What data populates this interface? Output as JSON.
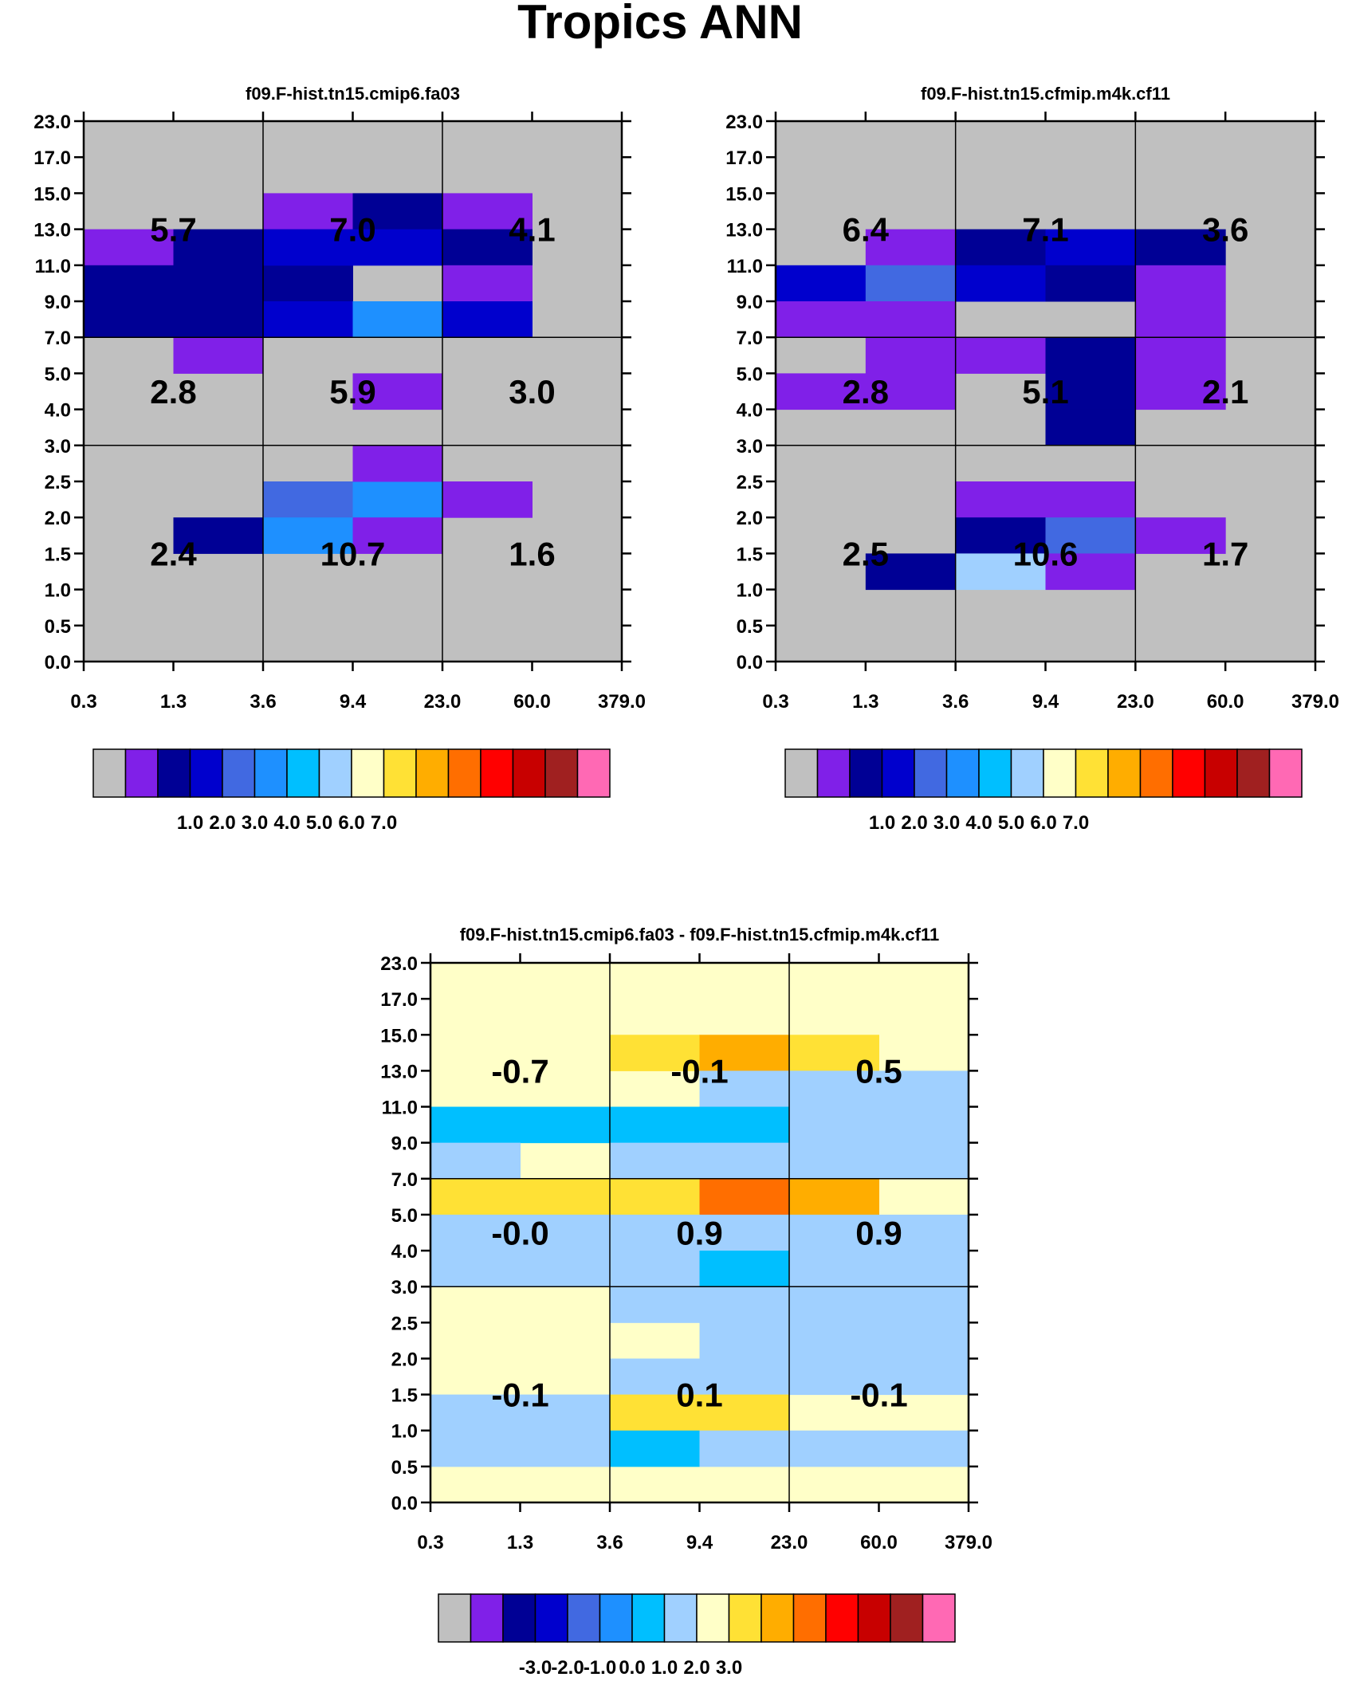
{
  "figure_title": "Tropics ANN",
  "palette": [
    "#c0c0c0",
    "#8020e8",
    "#000095",
    "#0000cd",
    "#4169e1",
    "#1e90ff",
    "#00bfff",
    "#a0d0ff",
    "#ffffc8",
    "#ffe135",
    "#ffad00",
    "#ff6e00",
    "#ff0000",
    "#c80000",
    "#a02020",
    "#ff69b4"
  ],
  "chart_data": [
    {
      "type": "heatmap",
      "title": "f09.F-hist.tn15.cmip6.fa03",
      "x_tick_labels": [
        "0.3",
        "1.3",
        "3.6",
        "9.4",
        "23.0",
        "60.0",
        "379.0"
      ],
      "y_tick_labels": [
        "0.0",
        "0.5",
        "1.0",
        "1.5",
        "2.0",
        "2.5",
        "3.0",
        "4.0",
        "5.0",
        "7.0",
        "9.0",
        "11.0",
        "13.0",
        "15.0",
        "17.0",
        "23.0"
      ],
      "note": "cells: [x_bin_index, y_bin_index, palette_color_index] for non-background bins",
      "cells": [
        [
          0,
          11,
          1
        ],
        [
          1,
          11,
          2
        ],
        [
          1,
          10,
          2
        ],
        [
          0,
          10,
          2
        ],
        [
          2,
          10,
          2
        ],
        [
          2,
          12,
          1
        ],
        [
          3,
          12,
          2
        ],
        [
          2,
          11,
          3
        ],
        [
          3,
          11,
          3
        ],
        [
          4,
          12,
          1
        ],
        [
          4,
          11,
          2
        ],
        [
          4,
          10,
          1
        ],
        [
          1,
          8,
          1
        ],
        [
          0,
          9,
          2
        ],
        [
          1,
          9,
          2
        ],
        [
          2,
          9,
          3
        ],
        [
          3,
          9,
          5
        ],
        [
          4,
          9,
          3
        ],
        [
          3,
          7,
          1
        ],
        [
          2,
          4,
          4
        ],
        [
          3,
          4,
          5
        ],
        [
          4,
          4,
          1
        ],
        [
          3,
          5,
          1
        ],
        [
          1,
          3,
          2
        ],
        [
          2,
          3,
          5
        ],
        [
          3,
          3,
          1
        ]
      ],
      "region_values": [
        {
          "row": "high",
          "col": "low",
          "value": "5.7"
        },
        {
          "row": "high",
          "col": "mid",
          "value": "7.0"
        },
        {
          "row": "high",
          "col": "high",
          "value": "4.1"
        },
        {
          "row": "mid",
          "col": "low",
          "value": "2.8"
        },
        {
          "row": "mid",
          "col": "mid",
          "value": "5.9"
        },
        {
          "row": "mid",
          "col": "high",
          "value": "3.0"
        },
        {
          "row": "low",
          "col": "low",
          "value": "2.4"
        },
        {
          "row": "low",
          "col": "mid",
          "value": "10.7"
        },
        {
          "row": "low",
          "col": "high",
          "value": "1.6"
        }
      ],
      "colorbar_labels": [
        "1.0",
        "2.0",
        "3.0",
        "4.0",
        "5.0",
        "6.0",
        "7.0"
      ]
    },
    {
      "type": "heatmap",
      "title": "f09.F-hist.tn15.cfmip.m4k.cf11",
      "x_tick_labels": [
        "0.3",
        "1.3",
        "3.6",
        "9.4",
        "23.0",
        "60.0",
        "379.0"
      ],
      "y_tick_labels": [
        "0.0",
        "0.5",
        "1.0",
        "1.5",
        "2.0",
        "2.5",
        "3.0",
        "4.0",
        "5.0",
        "7.0",
        "9.0",
        "11.0",
        "13.0",
        "15.0",
        "17.0",
        "23.0"
      ],
      "note": "cells: [x_bin_index, y_bin_index, palette_color_index] for non-background bins",
      "cells": [
        [
          1,
          11,
          1
        ],
        [
          2,
          11,
          2
        ],
        [
          3,
          11,
          3
        ],
        [
          4,
          11,
          2
        ],
        [
          0,
          10,
          3
        ],
        [
          1,
          10,
          4
        ],
        [
          2,
          10,
          3
        ],
        [
          3,
          10,
          2
        ],
        [
          4,
          10,
          1
        ],
        [
          0,
          9,
          1
        ],
        [
          1,
          9,
          1
        ],
        [
          4,
          9,
          1
        ],
        [
          1,
          8,
          1
        ],
        [
          2,
          8,
          1
        ],
        [
          3,
          8,
          2
        ],
        [
          4,
          8,
          1
        ],
        [
          0,
          7,
          1
        ],
        [
          1,
          7,
          1
        ],
        [
          3,
          7,
          2
        ],
        [
          4,
          7,
          1
        ],
        [
          3,
          6,
          2
        ],
        [
          2,
          4,
          1
        ],
        [
          3,
          4,
          1
        ],
        [
          2,
          3,
          2
        ],
        [
          3,
          3,
          4
        ],
        [
          4,
          3,
          1
        ],
        [
          1,
          2,
          2
        ],
        [
          2,
          2,
          7
        ],
        [
          3,
          2,
          1
        ]
      ],
      "region_values": [
        {
          "row": "high",
          "col": "low",
          "value": "6.4"
        },
        {
          "row": "high",
          "col": "mid",
          "value": "7.1"
        },
        {
          "row": "high",
          "col": "high",
          "value": "3.6"
        },
        {
          "row": "mid",
          "col": "low",
          "value": "2.8"
        },
        {
          "row": "mid",
          "col": "mid",
          "value": "5.1"
        },
        {
          "row": "mid",
          "col": "high",
          "value": "2.1"
        },
        {
          "row": "low",
          "col": "low",
          "value": "2.5"
        },
        {
          "row": "low",
          "col": "mid",
          "value": "10.6"
        },
        {
          "row": "low",
          "col": "high",
          "value": "1.7"
        }
      ],
      "colorbar_labels": [
        "1.0",
        "2.0",
        "3.0",
        "4.0",
        "5.0",
        "6.0",
        "7.0"
      ]
    },
    {
      "type": "heatmap",
      "title": "f09.F-hist.tn15.cmip6.fa03 - f09.F-hist.tn15.cfmip.m4k.cf11",
      "x_tick_labels": [
        "0.3",
        "1.3",
        "3.6",
        "9.4",
        "23.0",
        "60.0",
        "379.0"
      ],
      "y_tick_labels": [
        "0.0",
        "0.5",
        "1.0",
        "1.5",
        "2.0",
        "2.5",
        "3.0",
        "4.0",
        "5.0",
        "7.0",
        "9.0",
        "11.0",
        "13.0",
        "15.0",
        "17.0",
        "23.0"
      ],
      "note": "cells: [x_bin_index, y_bin_index, palette_color_index]; background is palette index 8",
      "cells": [
        [
          2,
          12,
          9
        ],
        [
          3,
          12,
          10
        ],
        [
          4,
          12,
          9
        ],
        [
          3,
          11,
          7
        ],
        [
          4,
          11,
          7
        ],
        [
          5,
          11,
          7
        ],
        [
          0,
          10,
          6
        ],
        [
          1,
          10,
          6
        ],
        [
          2,
          10,
          6
        ],
        [
          3,
          10,
          6
        ],
        [
          4,
          10,
          7
        ],
        [
          5,
          10,
          7
        ],
        [
          0,
          9,
          7
        ],
        [
          2,
          9,
          7
        ],
        [
          3,
          9,
          7
        ],
        [
          4,
          9,
          7
        ],
        [
          5,
          9,
          7
        ],
        [
          0,
          8,
          9
        ],
        [
          1,
          8,
          9
        ],
        [
          2,
          8,
          9
        ],
        [
          3,
          8,
          11
        ],
        [
          4,
          8,
          10
        ],
        [
          0,
          7,
          7
        ],
        [
          1,
          7,
          7
        ],
        [
          2,
          7,
          7
        ],
        [
          3,
          7,
          7
        ],
        [
          4,
          7,
          7
        ],
        [
          5,
          7,
          7
        ],
        [
          0,
          6,
          7
        ],
        [
          1,
          6,
          7
        ],
        [
          2,
          6,
          7
        ],
        [
          3,
          6,
          6
        ],
        [
          4,
          6,
          7
        ],
        [
          5,
          6,
          7
        ],
        [
          2,
          5,
          7
        ],
        [
          3,
          5,
          7
        ],
        [
          4,
          5,
          7
        ],
        [
          5,
          5,
          7
        ],
        [
          3,
          4,
          7
        ],
        [
          4,
          4,
          7
        ],
        [
          5,
          4,
          7
        ],
        [
          2,
          3,
          7
        ],
        [
          3,
          3,
          7
        ],
        [
          4,
          3,
          7
        ],
        [
          5,
          3,
          7
        ],
        [
          0,
          2,
          7
        ],
        [
          1,
          2,
          7
        ],
        [
          2,
          2,
          9
        ],
        [
          3,
          2,
          9
        ],
        [
          0,
          1,
          7
        ],
        [
          1,
          1,
          7
        ],
        [
          2,
          1,
          6
        ],
        [
          3,
          1,
          7
        ],
        [
          4,
          1,
          7
        ],
        [
          5,
          1,
          7
        ]
      ],
      "region_values": [
        {
          "row": "high",
          "col": "low",
          "value": "-0.7"
        },
        {
          "row": "high",
          "col": "mid",
          "value": "-0.1"
        },
        {
          "row": "high",
          "col": "high",
          "value": "0.5"
        },
        {
          "row": "mid",
          "col": "low",
          "value": "-0.0"
        },
        {
          "row": "mid",
          "col": "mid",
          "value": "0.9"
        },
        {
          "row": "mid",
          "col": "high",
          "value": "0.9"
        },
        {
          "row": "low",
          "col": "low",
          "value": "-0.1"
        },
        {
          "row": "low",
          "col": "mid",
          "value": "0.1"
        },
        {
          "row": "low",
          "col": "high",
          "value": "-0.1"
        }
      ],
      "colorbar_labels": [
        "-3.0",
        "-2.0",
        "-1.0",
        "0.0",
        "1.0",
        "2.0",
        "3.0"
      ]
    }
  ]
}
